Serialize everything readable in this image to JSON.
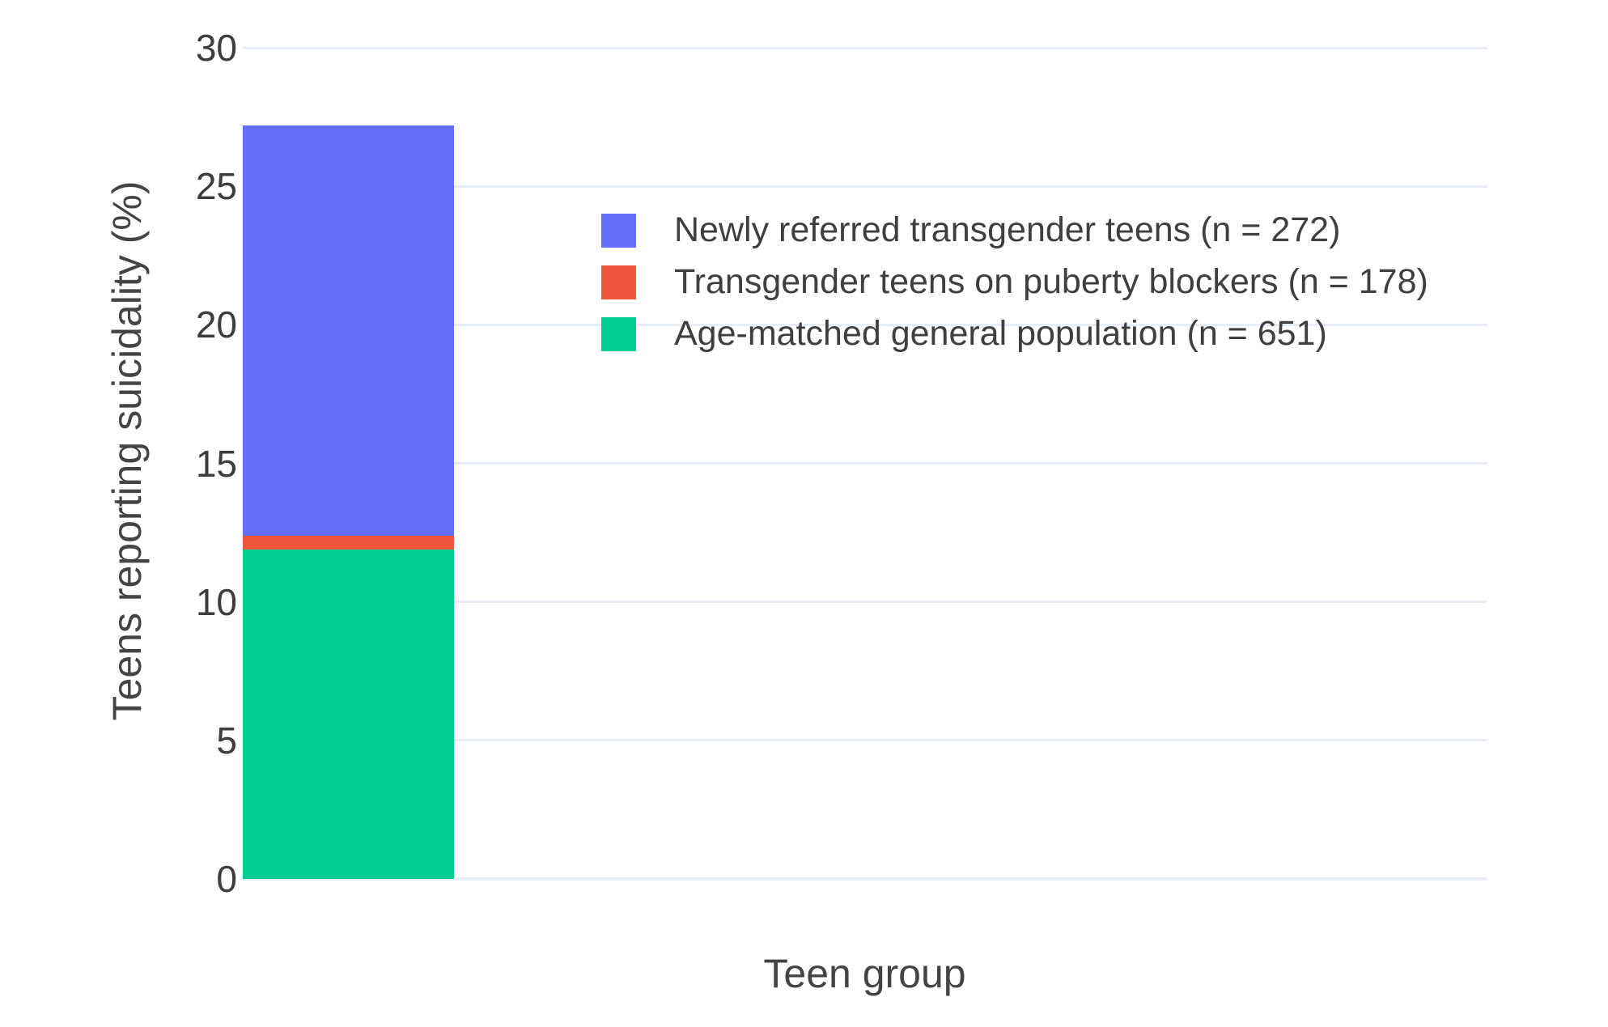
{
  "chart_data": {
    "type": "bar",
    "title": "",
    "xlabel": "Teen group",
    "ylabel": "Teens reporting suicidality (%)",
    "ylim": [
      0,
      30
    ],
    "yticks": [
      0,
      5,
      10,
      15,
      20,
      25,
      30
    ],
    "grid": true,
    "gridcolor": "#E8EDF5",
    "background": "#FFFFFF",
    "text_color": "#3F3F3F",
    "legend_position": "inside plot, upper area",
    "categories": [
      "Newly referred transgender teens (n = 272)",
      "Transgender teens on puberty blockers (n = 178)",
      "Age-matched general population (n = 651)"
    ],
    "values": [
      27.2,
      12.4,
      11.9
    ],
    "bars": [
      {
        "label": "Newly referred transgender teens (n = 272)",
        "value": 27.2,
        "n": 272,
        "color": "#636EFA"
      },
      {
        "label": "Transgender teens on puberty blockers (n = 178)",
        "value": 12.4,
        "n": 178,
        "color": "#EF553B"
      },
      {
        "label": "Age-matched general population (n = 651)",
        "value": 11.9,
        "n": 651,
        "color": "#00CC96"
      }
    ]
  }
}
